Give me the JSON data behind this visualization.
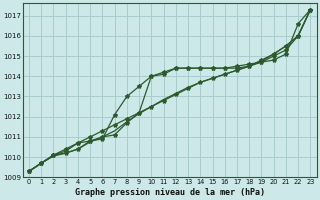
{
  "background_color": "#cce8e8",
  "plot_bg_color": "#cce8e8",
  "grid_color": "#aacccc",
  "line_color": "#2d5a2d",
  "title": "Graphe pression niveau de la mer (hPa)",
  "ylim": [
    1009,
    1017.6
  ],
  "xlim": [
    -0.5,
    23.5
  ],
  "yticks": [
    1009,
    1010,
    1011,
    1012,
    1013,
    1014,
    1015,
    1016,
    1017
  ],
  "xticks": [
    0,
    1,
    2,
    3,
    4,
    5,
    6,
    7,
    8,
    9,
    10,
    11,
    12,
    13,
    14,
    15,
    16,
    17,
    18,
    19,
    20,
    21,
    22,
    23
  ],
  "series": {
    "s1_straight": [
      1009.3,
      1009.7,
      1010.1,
      1010.4,
      1010.7,
      1011.0,
      1011.3,
      1011.6,
      1011.9,
      1012.2,
      1012.5,
      1012.8,
      1013.1,
      1013.4,
      1013.7,
      1013.9,
      1014.1,
      1014.3,
      1014.5,
      1014.8,
      1015.1,
      1015.5,
      1016.0,
      1017.3
    ],
    "s2_flat_mid": [
      1009.3,
      1009.7,
      1010.1,
      1010.2,
      1010.4,
      1010.8,
      1011.0,
      1011.1,
      1011.7,
      1012.2,
      1014.0,
      1014.1,
      1014.4,
      1014.4,
      1014.4,
      1014.4,
      1014.4,
      1014.4,
      1014.5,
      1014.7,
      1014.8,
      1015.1,
      1016.6,
      1017.3
    ],
    "s3_steep": [
      1009.3,
      1009.7,
      1010.1,
      1010.3,
      1010.7,
      1010.8,
      1010.9,
      1012.1,
      1013.0,
      1013.5,
      1014.0,
      1014.2,
      1014.4,
      1014.4,
      1014.4,
      1014.4,
      1014.4,
      1014.5,
      1014.6,
      1014.7,
      1015.0,
      1015.3,
      1016.0,
      1017.3
    ],
    "s4_smooth": [
      1009.3,
      1009.7,
      1010.05,
      1010.2,
      1010.4,
      1010.75,
      1011.0,
      1011.3,
      1011.75,
      1012.15,
      1012.5,
      1012.85,
      1013.15,
      1013.45,
      1013.7,
      1013.9,
      1014.1,
      1014.3,
      1014.5,
      1014.75,
      1015.1,
      1015.5,
      1016.0,
      1017.3
    ]
  }
}
